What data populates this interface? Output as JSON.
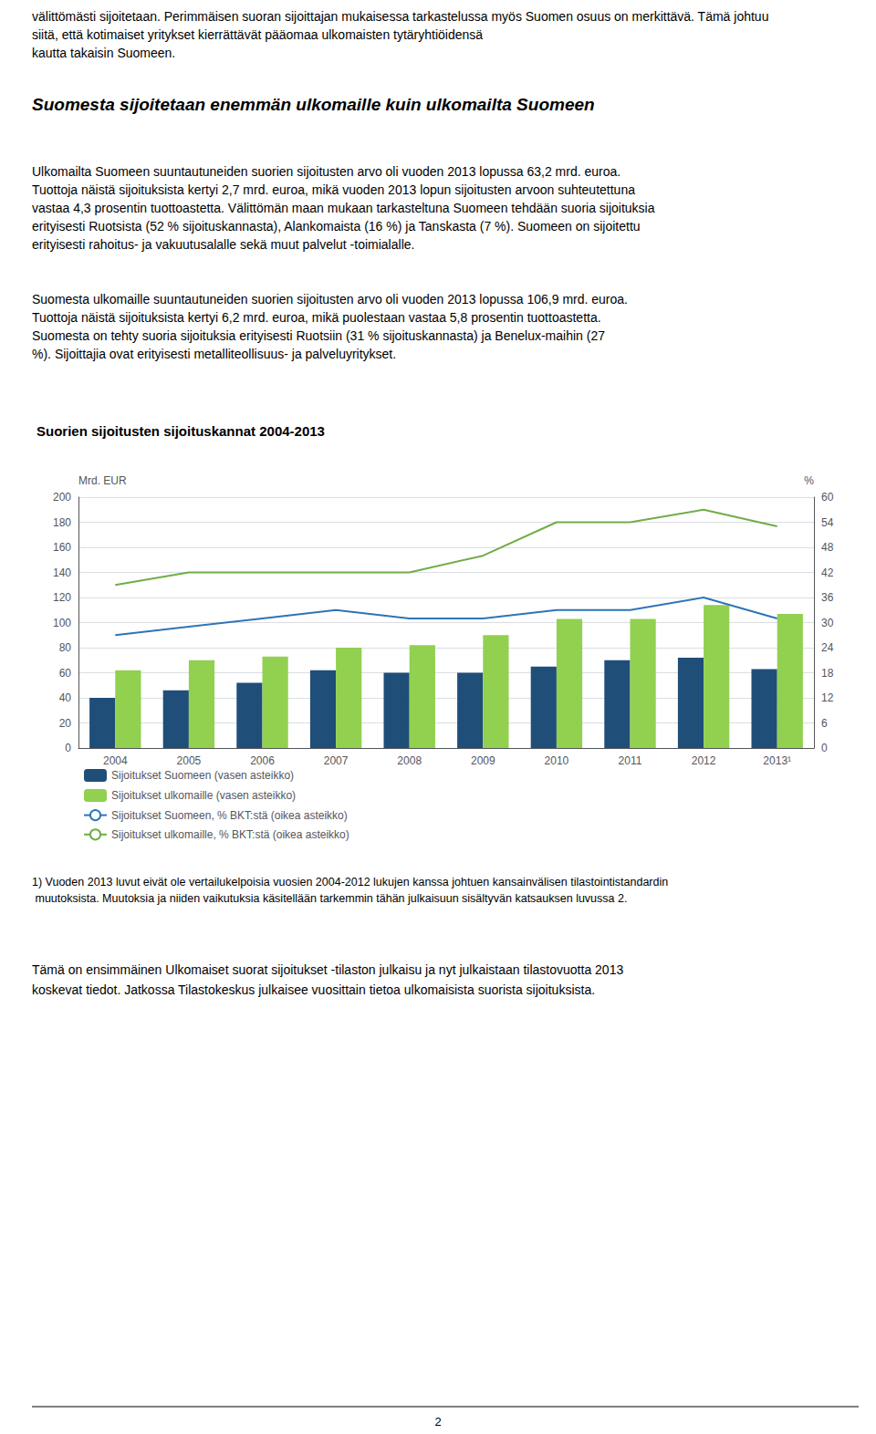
{
  "chart_data": {
    "type": "bar",
    "title": "Suorien sijoitusten sijoituskannat 2004-2013",
    "categories": [
      "2004",
      "2005",
      "2006",
      "2007",
      "2008",
      "2009",
      "2010",
      "2011",
      "2012",
      "2013¹"
    ],
    "series": [
      {
        "name": "Sijoitukset Suomeen (vasen asteikko)",
        "type": "bar",
        "axis": "y",
        "color": "#1F4E79",
        "values": [
          40,
          46,
          52,
          62,
          60,
          60,
          65,
          70,
          72,
          63
        ]
      },
      {
        "name": "Sijoitukset ulkomaille (vasen asteikko)",
        "type": "bar",
        "axis": "y",
        "color": "#92D050",
        "values": [
          62,
          70,
          73,
          80,
          82,
          90,
          103,
          103,
          114,
          107
        ]
      },
      {
        "name": "Sijoitukset Suomeen, % BKT:stä (oikea asteikko)",
        "type": "line",
        "axis": "y2",
        "color": "#2E75B6",
        "values": [
          27,
          29,
          31,
          33,
          31,
          31,
          33,
          33,
          36,
          31
        ]
      },
      {
        "name": "Sijoitukset ulkomaille, % BKT:stä (oikea asteikko)",
        "type": "line",
        "axis": "y2",
        "color": "#70AD47",
        "values": [
          39,
          42,
          42,
          42,
          42,
          46,
          54,
          54,
          57,
          53
        ]
      }
    ],
    "ylabel": "Mrd. EUR",
    "y2label": "%",
    "ylim": [
      0,
      200
    ],
    "yticks": [
      0,
      20,
      40,
      60,
      80,
      100,
      120,
      140,
      160,
      180,
      200
    ],
    "y2lim": [
      0,
      60
    ],
    "y2ticks": [
      0,
      6,
      12,
      18,
      24,
      30,
      36,
      42,
      48,
      54,
      60
    ],
    "grid": true,
    "legend": "bottom",
    "annotations": [
      "välittömästi sijoitetaan. Perimmäisen suoran sijoittajan mukaisessa tarkastelussa myös Suomen osuus on merkittävä. Tämä johtuu siitä, että kotimaiset yritykset kierrättävät pääomaa ulkomaisten tytäryhtiöidensä\nkautta takaisin Suomeen.",
      "Suomesta sijoitetaan enemmän ulkomaille kuin ulkomailta Suomeen",
      "Ulkomailta Suomeen suuntautuneiden suorien sijoitusten arvo oli vuoden 2013 lopussa 63,2 mrd. euroa.\nTuottoja näistä sijoituksista kertyi 2,7 mrd. euroa, mikä vuoden 2013 lopun sijoitusten arvoon suhteutettuna\nvastaa 4,3 prosentin tuottoastetta. Välittömän maan mukaan tarkasteltuna Suomeen tehdään suoria sijoituksia\nerityisesti Ruotsista (52 % sijoituskannasta), Alankomaista (16 %) ja Tanskasta (7 %). Suomeen on sijoitettu\nerityisesti rahoitus- ja vakuutusalalle sekä muut palvelut -toimialalle.",
      "Suomesta ulkomaille suuntautuneiden suorien sijoitusten arvo oli vuoden 2013 lopussa 106,9 mrd. euroa.\nTuottoja näistä sijoituksista kertyi 6,2 mrd. euroa, mikä puolestaan vastaa 5,8 prosentin tuottoastetta.\nSuomesta on tehty suoria sijoituksia erityisesti Ruotsiin (31 % sijoituskannasta) ja Benelux-maihin (27\n%). Sijoittajia ovat erityisesti metalliteollisuus- ja palveluyritykset.",
      "1) Vuoden 2013 luvut eivät ole vertailukelpoisia vuosien 2004-2012 lukujen kanssa johtuen kansainvälisen tilastointistandardin muutoksista. Muutoksia ja niiden vaikutuksia käsitellään tarkemmin tähän julkaisuun sisältyvän katsauksen luvussa 2.",
      "Tämä on ensimmäinen Ulkomaiset suorat sijoitukset -tilaston julkaisu ja nyt julkaistaan tilastovuotta 2013\nkoskevat tiedot. Jatkossa Tilastokeskus julkaisee vuosittain tietoa ulkomaisista suorista sijoituksista.",
      "2"
    ]
  }
}
